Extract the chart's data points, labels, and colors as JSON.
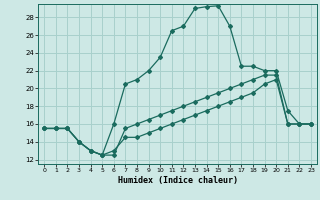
{
  "xlabel": "Humidex (Indice chaleur)",
  "background_color": "#cde8e5",
  "grid_color": "#a8d0cc",
  "line_color": "#1a6b5e",
  "xlim": [
    -0.5,
    23.5
  ],
  "ylim": [
    11.5,
    29.5
  ],
  "xticks": [
    0,
    1,
    2,
    3,
    4,
    5,
    6,
    7,
    8,
    9,
    10,
    11,
    12,
    13,
    14,
    15,
    16,
    17,
    18,
    19,
    20,
    21,
    22,
    23
  ],
  "yticks": [
    12,
    14,
    16,
    18,
    20,
    22,
    24,
    26,
    28
  ],
  "line1_x": [
    0,
    1,
    2,
    3,
    4,
    5,
    6,
    7,
    8,
    9,
    10,
    11,
    12,
    13,
    14,
    15,
    16,
    17,
    18,
    19,
    20,
    21,
    22,
    23
  ],
  "line1_y": [
    15.5,
    15.5,
    15.5,
    14.0,
    13.0,
    12.5,
    12.5,
    15.5,
    16.0,
    16.5,
    17.0,
    17.5,
    18.0,
    18.5,
    19.0,
    19.5,
    20.0,
    20.5,
    21.0,
    21.5,
    21.5,
    16.0,
    16.0,
    16.0
  ],
  "line2_x": [
    0,
    1,
    2,
    3,
    4,
    5,
    6,
    7,
    8,
    9,
    10,
    11,
    12,
    13,
    14,
    15,
    16,
    17,
    18,
    19,
    20,
    21,
    22,
    23
  ],
  "line2_y": [
    15.5,
    15.5,
    15.5,
    14.0,
    13.0,
    12.5,
    16.0,
    20.5,
    21.0,
    22.0,
    23.5,
    26.5,
    27.0,
    29.0,
    29.2,
    29.3,
    27.0,
    22.5,
    22.5,
    22.0,
    22.0,
    17.5,
    16.0,
    16.0
  ],
  "line3_x": [
    0,
    1,
    2,
    3,
    4,
    5,
    6,
    7,
    8,
    9,
    10,
    11,
    12,
    13,
    14,
    15,
    16,
    17,
    18,
    19,
    20,
    21,
    22,
    23
  ],
  "line3_y": [
    15.5,
    15.5,
    15.5,
    14.0,
    13.0,
    12.5,
    13.0,
    14.5,
    14.5,
    15.0,
    15.5,
    16.0,
    16.5,
    17.0,
    17.5,
    18.0,
    18.5,
    19.0,
    19.5,
    20.5,
    21.0,
    16.0,
    16.0,
    16.0
  ]
}
